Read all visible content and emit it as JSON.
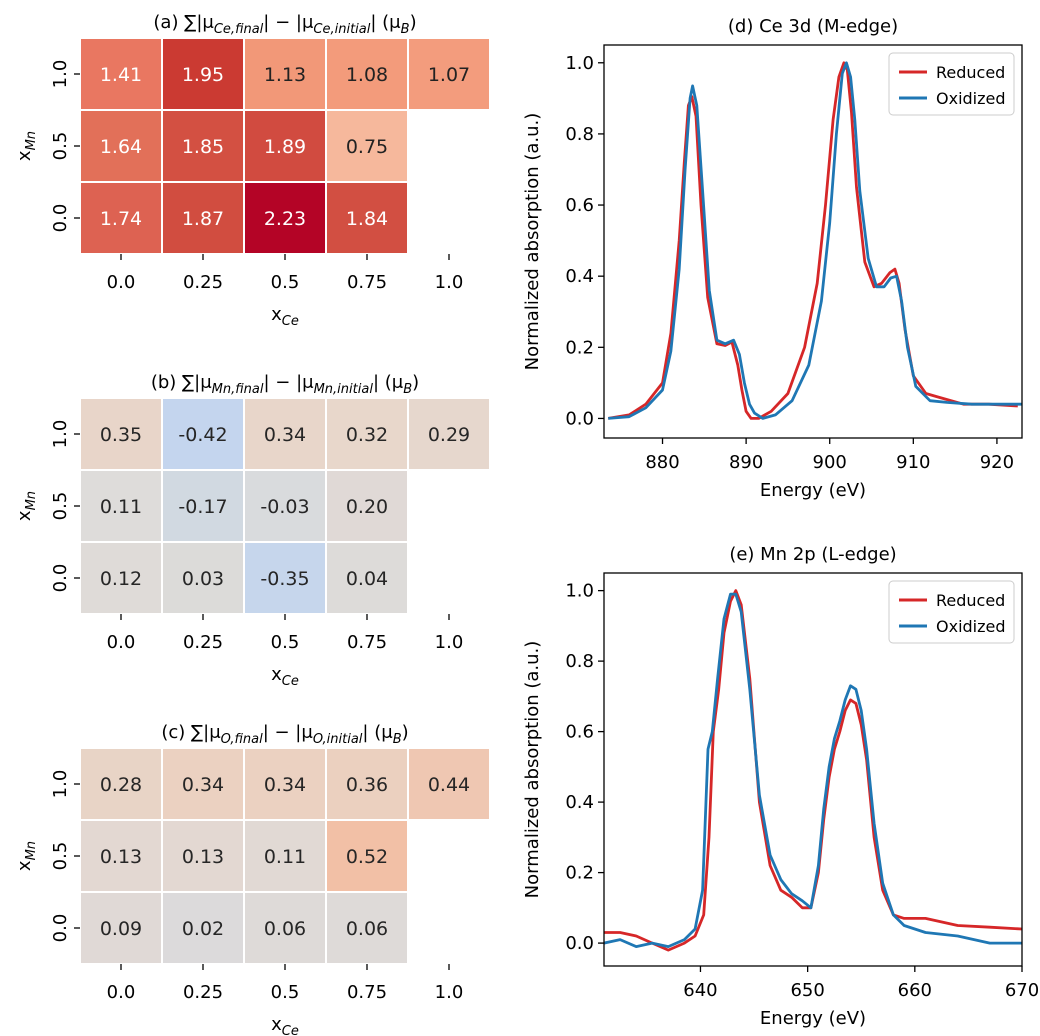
{
  "chart_data": [
    {
      "type": "heatmap",
      "title": "(a) ∑|μ<sub>Ce,final</sub>| − |μ<sub>Ce,initial</sub>| (μ<sub>B</sub>)",
      "xlabel": "x<sub>Ce</sub>",
      "ylabel": "x<sub>Mn</sub>",
      "x_categories": [
        "0.0",
        "0.25",
        "0.5",
        "0.75",
        "1.0"
      ],
      "y_categories": [
        "1.0",
        "0.5",
        "0.0"
      ],
      "values": [
        [
          1.41,
          1.95,
          1.13,
          1.08,
          1.07
        ],
        [
          1.64,
          1.85,
          1.89,
          0.75,
          null
        ],
        [
          1.74,
          1.87,
          2.23,
          1.84,
          null
        ]
      ],
      "colormap": "coolwarm",
      "colors": [
        [
          "#e97761",
          "#cb3a32",
          "#f29878",
          "#f39b7b",
          "#f39c7d"
        ],
        [
          "#e27059",
          "#d35042",
          "#d14b40",
          "#f6b89c",
          null
        ],
        [
          "#dd6252",
          "#d14d40",
          "#b40426",
          "#d24f42",
          null
        ]
      ]
    },
    {
      "type": "heatmap",
      "title": "(b) ∑|μ<sub>Mn,final</sub>| − |μ<sub>Mn,initial</sub>| (μ<sub>B</sub>)",
      "xlabel": "x<sub>Ce</sub>",
      "ylabel": "x<sub>Mn</sub>",
      "x_categories": [
        "0.0",
        "0.25",
        "0.5",
        "0.75",
        "1.0"
      ],
      "y_categories": [
        "1.0",
        "0.5",
        "0.0"
      ],
      "values": [
        [
          0.35,
          -0.42,
          0.34,
          0.32,
          0.29
        ],
        [
          0.11,
          -0.17,
          -0.03,
          0.2,
          null
        ],
        [
          0.12,
          0.03,
          -0.35,
          0.04,
          null
        ]
      ],
      "colormap": "coolwarm",
      "colors": [
        [
          "#e8d5c9",
          "#c4d5ee",
          "#e8d6ca",
          "#e8d7cb",
          "#e6d7cd"
        ],
        [
          "#dedcda",
          "#d1d9e1",
          "#d9dbdd",
          "#e0d9d6",
          null
        ],
        [
          "#dfdbd8",
          "#dcdbd9",
          "#c6d6ec",
          "#dddbd9",
          null
        ]
      ]
    },
    {
      "type": "heatmap",
      "title": "(c) ∑|μ<sub>O,final</sub>| − |μ<sub>O,initial</sub>| (μ<sub>B</sub>)",
      "xlabel": "x<sub>Ce</sub>",
      "ylabel": "x<sub>Mn</sub>",
      "x_categories": [
        "0.0",
        "0.25",
        "0.5",
        "0.75",
        "1.0"
      ],
      "y_categories": [
        "1.0",
        "0.5",
        "0.0"
      ],
      "values": [
        [
          0.28,
          0.34,
          0.34,
          0.36,
          0.44
        ],
        [
          0.13,
          0.13,
          0.11,
          0.52,
          null
        ],
        [
          0.09,
          0.02,
          0.06,
          0.06,
          null
        ]
      ],
      "colormap": "coolwarm",
      "colors": [
        [
          "#e8d4c6",
          "#ebd1c1",
          "#ebd1c1",
          "#ebd0bf",
          "#efc7b2"
        ],
        [
          "#e3d8d2",
          "#e3d8d2",
          "#e1d9d4",
          "#f2c0a6",
          null
        ],
        [
          "#e0d9d6",
          "#dcdadb",
          "#dedad8",
          "#dedad8",
          null
        ]
      ]
    },
    {
      "type": "line",
      "title": "(d) Ce 3d (M-edge)",
      "xlabel": "Energy (eV)",
      "ylabel": "Normalized absorption (a.u.)",
      "xlim": [
        873,
        923
      ],
      "ylim": [
        -0.055,
        1.05
      ],
      "xticks": [
        880,
        890,
        900,
        910,
        920
      ],
      "yticks": [
        0.0,
        0.2,
        0.4,
        0.6,
        0.8,
        1.0
      ],
      "legend": "top-right",
      "series": [
        {
          "name": "Reduced",
          "color": "#d62728",
          "x": [
            873.5,
            876,
            878,
            880,
            881,
            882,
            882.6,
            883.1,
            883.5,
            884,
            884.6,
            885.4,
            886.5,
            887.5,
            888.3,
            889,
            889.5,
            890,
            890.6,
            891.5,
            893,
            895,
            897,
            898.5,
            899.5,
            900.4,
            901.1,
            901.7,
            902.1,
            902.6,
            903.2,
            904.2,
            905.3,
            906.2,
            907.2,
            907.8,
            908.3,
            909,
            910,
            911.5,
            913,
            916,
            919,
            922.5
          ],
          "y": [
            0.0,
            0.01,
            0.04,
            0.1,
            0.24,
            0.5,
            0.72,
            0.88,
            0.905,
            0.85,
            0.6,
            0.34,
            0.21,
            0.205,
            0.215,
            0.15,
            0.08,
            0.02,
            0.0,
            0.0,
            0.02,
            0.07,
            0.2,
            0.38,
            0.6,
            0.84,
            0.96,
            1.0,
            0.98,
            0.86,
            0.65,
            0.44,
            0.37,
            0.38,
            0.41,
            0.42,
            0.38,
            0.25,
            0.12,
            0.07,
            0.06,
            0.04,
            0.04,
            0.035
          ]
        },
        {
          "name": "Oxidized",
          "color": "#1f77b4",
          "x": [
            873.5,
            876,
            878,
            880,
            881,
            882,
            882.7,
            883.3,
            883.6,
            884.1,
            884.8,
            885.6,
            886.5,
            887.5,
            888.5,
            889.2,
            889.8,
            890.4,
            891,
            892,
            893.5,
            895.5,
            897.5,
            899,
            900,
            900.8,
            901.5,
            902,
            902.5,
            903,
            903.6,
            904.6,
            905.6,
            906.5,
            907.3,
            908,
            908.6,
            909.3,
            910.3,
            912,
            914,
            917,
            920,
            923
          ],
          "y": [
            0.0,
            0.005,
            0.03,
            0.08,
            0.19,
            0.42,
            0.7,
            0.9,
            0.935,
            0.88,
            0.64,
            0.36,
            0.22,
            0.21,
            0.22,
            0.18,
            0.1,
            0.04,
            0.015,
            0.0,
            0.01,
            0.05,
            0.15,
            0.33,
            0.55,
            0.8,
            0.97,
            1.0,
            0.96,
            0.84,
            0.64,
            0.45,
            0.37,
            0.37,
            0.395,
            0.4,
            0.33,
            0.2,
            0.09,
            0.05,
            0.045,
            0.04,
            0.04,
            0.04
          ]
        }
      ]
    },
    {
      "type": "line",
      "title": "(e) Mn 2p (L-edge)",
      "xlabel": "Energy (eV)",
      "ylabel": "Normalized absorption (a.u.)",
      "xlim": [
        631,
        670
      ],
      "ylim": [
        -0.065,
        1.05
      ],
      "xticks": [
        640,
        650,
        660,
        670
      ],
      "yticks": [
        0.0,
        0.2,
        0.4,
        0.6,
        0.8,
        1.0
      ],
      "legend": "top-right",
      "series": [
        {
          "name": "Reduced",
          "color": "#d62728",
          "x": [
            631,
            632.5,
            634,
            635.5,
            637,
            638.5,
            639.5,
            640.3,
            640.8,
            641.2,
            641.7,
            642.2,
            642.8,
            643.3,
            643.8,
            644.6,
            645.5,
            646.5,
            647.5,
            648.5,
            649.5,
            650.3,
            651,
            651.5,
            652,
            652.5,
            653,
            653.5,
            654,
            654.5,
            655,
            655.5,
            656.2,
            657,
            658,
            659,
            661,
            664,
            667,
            670
          ],
          "y": [
            0.03,
            0.03,
            0.02,
            0.0,
            -0.02,
            0.0,
            0.02,
            0.08,
            0.3,
            0.6,
            0.72,
            0.88,
            0.97,
            1.0,
            0.96,
            0.75,
            0.4,
            0.22,
            0.15,
            0.13,
            0.1,
            0.1,
            0.2,
            0.35,
            0.47,
            0.55,
            0.6,
            0.66,
            0.69,
            0.68,
            0.62,
            0.52,
            0.3,
            0.15,
            0.08,
            0.07,
            0.07,
            0.05,
            0.045,
            0.04
          ]
        },
        {
          "name": "Oxidized",
          "color": "#1f77b4",
          "x": [
            631,
            632.5,
            634,
            635.5,
            637,
            638.5,
            639.5,
            640.2,
            640.7,
            641.1,
            641.6,
            642.2,
            642.8,
            643.3,
            643.8,
            644.6,
            645.5,
            646.5,
            647.5,
            648.5,
            649.5,
            650.3,
            651,
            651.5,
            652,
            652.5,
            653,
            653.5,
            654,
            654.5,
            655,
            655.5,
            656.2,
            657,
            658,
            659,
            661,
            664,
            667,
            670
          ],
          "y": [
            0.0,
            0.01,
            -0.01,
            0.0,
            -0.01,
            0.01,
            0.04,
            0.15,
            0.55,
            0.6,
            0.75,
            0.92,
            0.99,
            0.99,
            0.94,
            0.72,
            0.42,
            0.25,
            0.18,
            0.14,
            0.12,
            0.1,
            0.22,
            0.38,
            0.5,
            0.58,
            0.63,
            0.69,
            0.73,
            0.72,
            0.66,
            0.55,
            0.34,
            0.17,
            0.08,
            0.05,
            0.03,
            0.02,
            0.0,
            0.0
          ]
        }
      ]
    }
  ]
}
